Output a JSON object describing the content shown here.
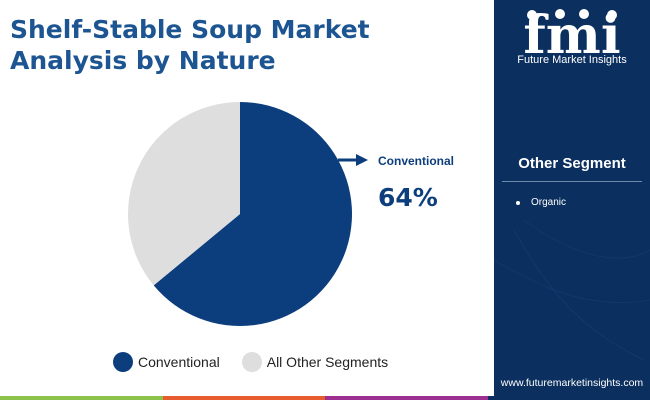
{
  "title": [
    "Shelf-Stable Soup Market",
    "Analysis by Nature"
  ],
  "chart_data": {
    "type": "pie",
    "categories": [
      "Conventional",
      "All Other Segments"
    ],
    "values": [
      64,
      36
    ],
    "unit": "%",
    "colors": [
      "#0c3e7e",
      "#dedede"
    ],
    "callout": {
      "label": "Conventional",
      "value": "64%"
    },
    "legend": [
      "Conventional",
      "All Other Segments"
    ],
    "legend_placement": "bottom"
  },
  "sidebar": {
    "logo_text": "fmi",
    "logo_caption": "Future Market Insights",
    "heading": "Other Segment",
    "items": [
      "Organic"
    ],
    "website": "www.futuremarketinsights.com"
  },
  "bottom_bar_colors": [
    "#8bc34a",
    "#e65c2e",
    "#9c2f8f",
    "#0b2f5e"
  ]
}
